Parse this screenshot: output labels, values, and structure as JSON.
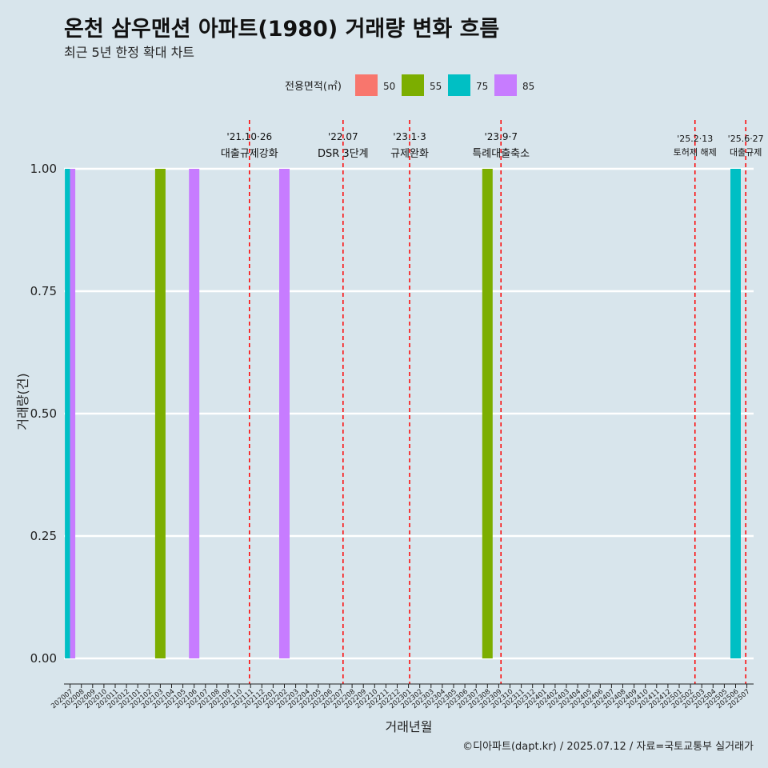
{
  "chart_data": {
    "type": "bar",
    "title": "온천 삼우맨션 아파트(1980) 거래량 변화 흐름",
    "subtitle": "최근 5년 한정 확대 차트",
    "xlabel": "거래년월",
    "ylabel": "거래량(건)",
    "ylim": [
      0,
      1
    ],
    "yticks": [
      "0.00",
      "0.25",
      "0.50",
      "0.75",
      "1.00"
    ],
    "grid": true,
    "legend": {
      "title": "전용면적(㎡)",
      "placement": "top",
      "items": [
        {
          "label": "50",
          "color": "#f8766d"
        },
        {
          "label": "55",
          "color": "#7cae00"
        },
        {
          "label": "75",
          "color": "#00bfc4"
        },
        {
          "label": "85",
          "color": "#c77cff"
        }
      ]
    },
    "categories": [
      "202007",
      "202008",
      "202009",
      "202010",
      "202011",
      "202012",
      "202101",
      "202102",
      "202103",
      "202104",
      "202105",
      "202106",
      "202107",
      "202108",
      "202109",
      "202110",
      "202111",
      "202112",
      "202201",
      "202202",
      "202203",
      "202204",
      "202205",
      "202206",
      "202207",
      "202208",
      "202209",
      "202210",
      "202211",
      "202212",
      "202301",
      "202302",
      "202303",
      "202304",
      "202305",
      "202306",
      "202307",
      "202308",
      "202309",
      "202310",
      "202311",
      "202312",
      "202401",
      "202402",
      "202403",
      "202404",
      "202405",
      "202406",
      "202407",
      "202408",
      "202409",
      "202410",
      "202411",
      "202412",
      "202501",
      "202502",
      "202503",
      "202504",
      "202505",
      "202506",
      "202507"
    ],
    "bars": [
      {
        "x": "202007",
        "area": "75",
        "value": 1
      },
      {
        "x": "202007",
        "area": "85",
        "value": 1
      },
      {
        "x": "202103",
        "area": "55",
        "value": 1
      },
      {
        "x": "202106",
        "area": "85",
        "value": 1
      },
      {
        "x": "202202",
        "area": "85",
        "value": 1
      },
      {
        "x": "202308",
        "area": "55",
        "value": 1
      },
      {
        "x": "202506",
        "area": "75",
        "value": 1
      }
    ],
    "annotations": [
      {
        "x": 202110.9,
        "date": "'21.10·26",
        "label": "대출규제강화"
      },
      {
        "x": 202207.2,
        "date": "'22.07",
        "label": "DSR 3단계"
      },
      {
        "x": 202301.1,
        "date": "'23.1·3",
        "label": "규제완화"
      },
      {
        "x": 202309.2,
        "date": "'23.9·7",
        "label": "특례대출축소"
      },
      {
        "x": 202502.4,
        "date": "'25.2·13",
        "label": "토허제 해제"
      },
      {
        "x": 202506.9,
        "date": "'25.6·27",
        "label": "대출규제"
      }
    ]
  },
  "caption": "©디아파트(dapt.kr) / 2025.07.12 / 자료=국토교통부 실거래가"
}
